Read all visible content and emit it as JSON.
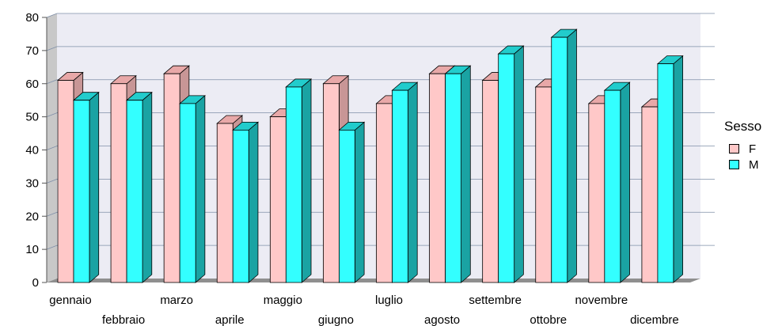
{
  "chart_data": {
    "type": "bar",
    "title": "",
    "xlabel": "",
    "ylabel": "",
    "ylim": [
      0,
      80
    ],
    "yticks": [
      0,
      10,
      20,
      30,
      40,
      50,
      60,
      70,
      80
    ],
    "categories": [
      "gennaio",
      "febbraio",
      "marzo",
      "aprile",
      "maggio",
      "giugno",
      "luglio",
      "agosto",
      "settembre",
      "ottobre",
      "novembre",
      "dicembre"
    ],
    "series": [
      {
        "name": "F",
        "values": [
          61,
          60,
          63,
          48,
          50,
          60,
          54,
          63,
          61,
          59,
          54,
          53
        ]
      },
      {
        "name": "M",
        "values": [
          55,
          55,
          54,
          46,
          59,
          46,
          58,
          63,
          69,
          74,
          58,
          66
        ]
      }
    ],
    "legend": {
      "title": "Sesso",
      "position": "right"
    },
    "grid": true,
    "style": "3d",
    "colors": {
      "F": {
        "front": "#ffc8c8",
        "side": "#c89696",
        "top": "#e8a8a8"
      },
      "M": {
        "front": "#33ffff",
        "side": "#1aa3a3",
        "top": "#22cccc"
      },
      "plot_bg": "#ececf4",
      "wall": "#c8c8c8",
      "floor": "#8f8f8f",
      "grid": "#7f8fa8"
    }
  }
}
